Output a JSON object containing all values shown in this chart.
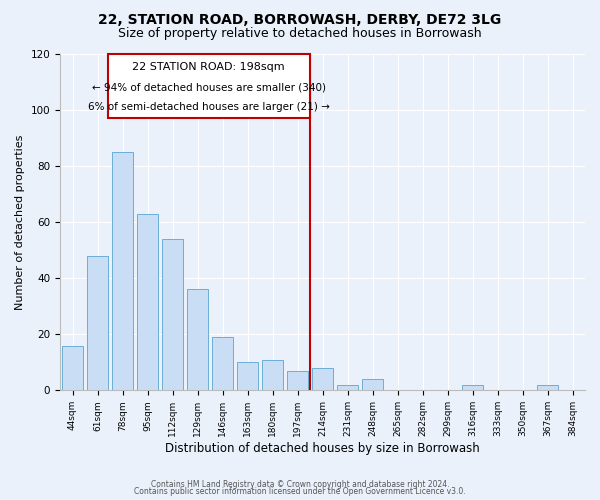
{
  "title": "22, STATION ROAD, BORROWASH, DERBY, DE72 3LG",
  "subtitle": "Size of property relative to detached houses in Borrowash",
  "xlabel": "Distribution of detached houses by size in Borrowash",
  "ylabel": "Number of detached properties",
  "bar_labels": [
    "44sqm",
    "61sqm",
    "78sqm",
    "95sqm",
    "112sqm",
    "129sqm",
    "146sqm",
    "163sqm",
    "180sqm",
    "197sqm",
    "214sqm",
    "231sqm",
    "248sqm",
    "265sqm",
    "282sqm",
    "299sqm",
    "316sqm",
    "333sqm",
    "350sqm",
    "367sqm",
    "384sqm"
  ],
  "bar_values": [
    16,
    48,
    85,
    63,
    54,
    36,
    19,
    10,
    11,
    7,
    8,
    2,
    4,
    0,
    0,
    0,
    2,
    0,
    0,
    2,
    0
  ],
  "bar_color": "#c9ddf5",
  "bar_edge_color": "#6baed6",
  "ylim": [
    0,
    120
  ],
  "yticks": [
    0,
    20,
    40,
    60,
    80,
    100,
    120
  ],
  "vline_color": "#c00000",
  "annotation_title": "22 STATION ROAD: 198sqm",
  "annotation_line1": "← 94% of detached houses are smaller (340)",
  "annotation_line2": "6% of semi-detached houses are larger (21) →",
  "annotation_box_color": "#c00000",
  "footnote1": "Contains HM Land Registry data © Crown copyright and database right 2024.",
  "footnote2": "Contains public sector information licensed under the Open Government Licence v3.0.",
  "background_color": "#eaf1fb",
  "plot_background": "#eaf1fb",
  "title_fontsize": 10,
  "subtitle_fontsize": 9
}
